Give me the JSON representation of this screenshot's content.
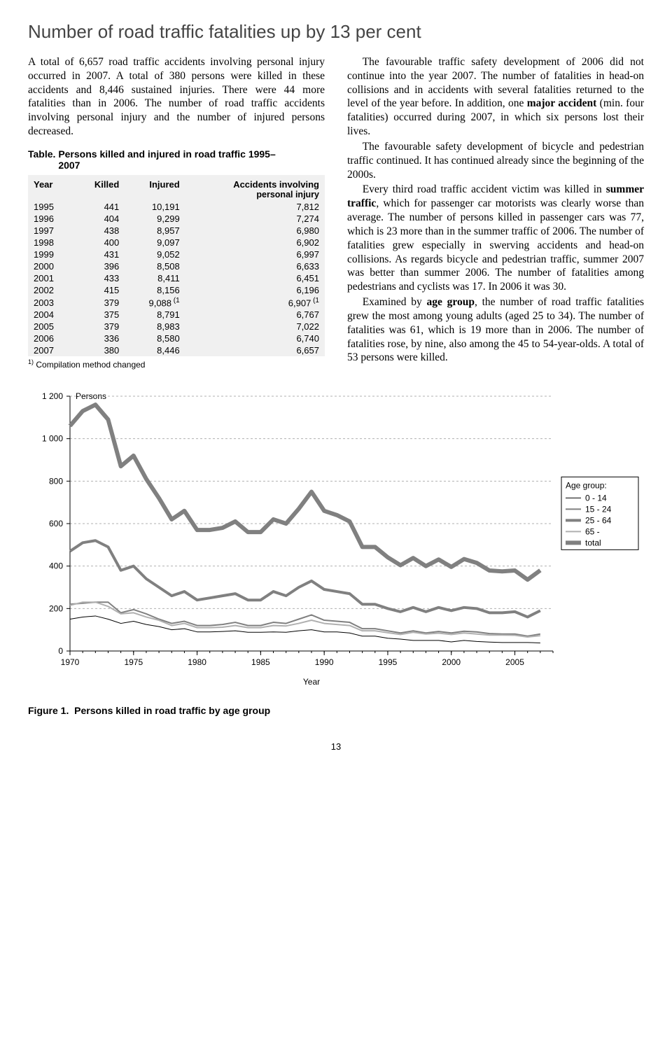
{
  "title": "Number of road traffic fatalities up by 13 per cent",
  "intro_para": "A total of 6,657 road traffic accidents involving personal injury occurred in 2007. A total of 380 persons were killed in these accidents and 8,446 sustained injuries. There were 44 more fatalities than in 2006. The number of road traffic accidents involving personal injury and the number of injured persons decreased.",
  "table": {
    "title_prefix": "Table.",
    "title_rest": "Persons killed and injured in road traffic 1995–2007",
    "cols": {
      "year": "Year",
      "killed": "Killed",
      "injured": "Injured",
      "accidents_l1": "Accidents involving",
      "accidents_l2": "personal injury"
    },
    "rows": [
      {
        "year": "1995",
        "killed": "441",
        "injured": "10,191",
        "acc": "7,812"
      },
      {
        "year": "1996",
        "killed": "404",
        "injured": "9,299",
        "acc": "7,274"
      },
      {
        "year": "1997",
        "killed": "438",
        "injured": "8,957",
        "acc": "6,980"
      },
      {
        "year": "1998",
        "killed": "400",
        "injured": "9,097",
        "acc": "6,902"
      },
      {
        "year": "1999",
        "killed": "431",
        "injured": "9,052",
        "acc": "6,997"
      },
      {
        "year": "2000",
        "killed": "396",
        "injured": "8,508",
        "acc": "6,633"
      },
      {
        "year": "2001",
        "killed": "433",
        "injured": "8,411",
        "acc": "6,451"
      },
      {
        "year": "2002",
        "killed": "415",
        "injured": "8,156",
        "acc": "6,196"
      },
      {
        "year": "2003",
        "killed": "379",
        "injured": "9,088",
        "injured_note": "(1",
        "acc": "6,907",
        "acc_note": "(1"
      },
      {
        "year": "2004",
        "killed": "375",
        "injured": "8,791",
        "acc": "6,767"
      },
      {
        "year": "2005",
        "killed": "379",
        "injured": "8,983",
        "acc": "7,022"
      },
      {
        "year": "2006",
        "killed": "336",
        "injured": "8,580",
        "acc": "6,740"
      },
      {
        "year": "2007",
        "killed": "380",
        "injured": "8,446",
        "acc": "6,657"
      }
    ],
    "footnote_sup": "1)",
    "footnote_text": "Compilation method changed"
  },
  "right_col": {
    "p1_a": "The favourable traffic safety development of 2006 did not continue into the year 2007. The number of fatalities in head-on collisions and in accidents with several fatalities returned to the level of the year before. In addition, one ",
    "p1_bold": "major accident",
    "p1_b": " (min. four fatalities) occurred during 2007, in which six persons lost their lives.",
    "p2": "The favourable safety development of bicycle and pedestrian traffic continued. It has continued already since the beginning of the 2000s.",
    "p3_a": "Every third road traffic accident victim was killed in ",
    "p3_bold": "summer traffic",
    "p3_b": ", which for passenger car motorists was clearly worse than average. The number of persons killed in passenger cars was 77, which is 23 more than in the summer traffic of 2006. The number of fatalities grew especially in swerving accidents and head-on collisions. As regards bicycle and pedestrian traffic, summer 2007 was better than summer 2006. The number of fatalities among pedestrians and cyclists was 17. In 2006 it was 30.",
    "p4_a": "Examined by ",
    "p4_bold": "age group",
    "p4_b": ", the number of road traffic fatalities grew the most among young adults (aged 25 to 34). The number of fatalities was 61, which is 19 more than in 2006. The number of fatalities rose, by nine, also among the 45 to 54-year-olds. A total of 53 persons were killed."
  },
  "chart": {
    "y_label": "Persons",
    "x_label": "Year",
    "y_ticks": [
      0,
      200,
      400,
      600,
      800,
      1000,
      1200
    ],
    "y_tick_labels": [
      "0",
      "200",
      "400",
      "600",
      "800",
      "1 000",
      "1 200"
    ],
    "x_ticks": [
      1970,
      1975,
      1980,
      1985,
      1990,
      1995,
      2000,
      2005
    ],
    "x_range": [
      1970,
      2008
    ],
    "y_range": [
      0,
      1200
    ],
    "legend_title": "Age group:",
    "legend": [
      {
        "label": "0 - 14",
        "color": "#000000",
        "weight": 1
      },
      {
        "label": "15 - 24",
        "color": "#808080",
        "weight": 2
      },
      {
        "label": "25 - 64",
        "color": "#808080",
        "weight": 4
      },
      {
        "label": "65 -",
        "color": "#b0b0b0",
        "weight": 2
      },
      {
        "label": "total",
        "color": "#808080",
        "weight": 6
      }
    ],
    "series": {
      "total": {
        "color": "#808080",
        "weight": 6,
        "points": [
          [
            1970,
            1060
          ],
          [
            1971,
            1130
          ],
          [
            1972,
            1160
          ],
          [
            1973,
            1090
          ],
          [
            1974,
            870
          ],
          [
            1975,
            920
          ],
          [
            1976,
            810
          ],
          [
            1977,
            720
          ],
          [
            1978,
            620
          ],
          [
            1979,
            660
          ],
          [
            1980,
            570
          ],
          [
            1981,
            570
          ],
          [
            1982,
            580
          ],
          [
            1983,
            610
          ],
          [
            1984,
            560
          ],
          [
            1985,
            560
          ],
          [
            1986,
            620
          ],
          [
            1987,
            600
          ],
          [
            1988,
            670
          ],
          [
            1989,
            750
          ],
          [
            1990,
            660
          ],
          [
            1991,
            640
          ],
          [
            1992,
            610
          ],
          [
            1993,
            490
          ],
          [
            1994,
            490
          ],
          [
            1995,
            441
          ],
          [
            1996,
            404
          ],
          [
            1997,
            438
          ],
          [
            1998,
            400
          ],
          [
            1999,
            431
          ],
          [
            2000,
            396
          ],
          [
            2001,
            433
          ],
          [
            2002,
            415
          ],
          [
            2003,
            379
          ],
          [
            2004,
            375
          ],
          [
            2005,
            379
          ],
          [
            2006,
            336
          ],
          [
            2007,
            380
          ]
        ]
      },
      "g25_64": {
        "color": "#808080",
        "weight": 4,
        "points": [
          [
            1970,
            470
          ],
          [
            1971,
            510
          ],
          [
            1972,
            520
          ],
          [
            1973,
            490
          ],
          [
            1974,
            380
          ],
          [
            1975,
            400
          ],
          [
            1976,
            340
          ],
          [
            1977,
            300
          ],
          [
            1978,
            260
          ],
          [
            1979,
            280
          ],
          [
            1980,
            240
          ],
          [
            1981,
            250
          ],
          [
            1982,
            260
          ],
          [
            1983,
            270
          ],
          [
            1984,
            240
          ],
          [
            1985,
            240
          ],
          [
            1986,
            280
          ],
          [
            1987,
            260
          ],
          [
            1988,
            300
          ],
          [
            1989,
            330
          ],
          [
            1990,
            290
          ],
          [
            1991,
            280
          ],
          [
            1992,
            270
          ],
          [
            1993,
            220
          ],
          [
            1994,
            220
          ],
          [
            1995,
            200
          ],
          [
            1996,
            185
          ],
          [
            1997,
            205
          ],
          [
            1998,
            185
          ],
          [
            1999,
            205
          ],
          [
            2000,
            190
          ],
          [
            2001,
            205
          ],
          [
            2002,
            200
          ],
          [
            2003,
            180
          ],
          [
            2004,
            180
          ],
          [
            2005,
            185
          ],
          [
            2006,
            160
          ],
          [
            2007,
            190
          ]
        ]
      },
      "g15_24": {
        "color": "#808080",
        "weight": 2,
        "points": [
          [
            1970,
            220
          ],
          [
            1971,
            225
          ],
          [
            1972,
            230
          ],
          [
            1973,
            230
          ],
          [
            1974,
            180
          ],
          [
            1975,
            195
          ],
          [
            1976,
            175
          ],
          [
            1977,
            150
          ],
          [
            1978,
            130
          ],
          [
            1979,
            140
          ],
          [
            1980,
            120
          ],
          [
            1981,
            120
          ],
          [
            1982,
            125
          ],
          [
            1983,
            135
          ],
          [
            1984,
            120
          ],
          [
            1985,
            120
          ],
          [
            1986,
            135
          ],
          [
            1987,
            130
          ],
          [
            1988,
            150
          ],
          [
            1989,
            170
          ],
          [
            1990,
            145
          ],
          [
            1991,
            140
          ],
          [
            1992,
            135
          ],
          [
            1993,
            105
          ],
          [
            1994,
            105
          ],
          [
            1995,
            95
          ],
          [
            1996,
            85
          ],
          [
            1997,
            95
          ],
          [
            1998,
            85
          ],
          [
            1999,
            92
          ],
          [
            2000,
            85
          ],
          [
            2001,
            93
          ],
          [
            2002,
            90
          ],
          [
            2003,
            82
          ],
          [
            2004,
            80
          ],
          [
            2005,
            80
          ],
          [
            2006,
            70
          ],
          [
            2007,
            80
          ]
        ]
      },
      "g65": {
        "color": "#b0b0b0",
        "weight": 2,
        "points": [
          [
            1970,
            215
          ],
          [
            1971,
            230
          ],
          [
            1972,
            230
          ],
          [
            1973,
            210
          ],
          [
            1974,
            175
          ],
          [
            1975,
            180
          ],
          [
            1976,
            160
          ],
          [
            1977,
            145
          ],
          [
            1978,
            120
          ],
          [
            1979,
            130
          ],
          [
            1980,
            110
          ],
          [
            1981,
            110
          ],
          [
            1982,
            112
          ],
          [
            1983,
            120
          ],
          [
            1984,
            110
          ],
          [
            1985,
            110
          ],
          [
            1986,
            120
          ],
          [
            1987,
            118
          ],
          [
            1988,
            130
          ],
          [
            1989,
            145
          ],
          [
            1990,
            130
          ],
          [
            1991,
            125
          ],
          [
            1992,
            120
          ],
          [
            1993,
            95
          ],
          [
            1994,
            95
          ],
          [
            1995,
            86
          ],
          [
            1996,
            78
          ],
          [
            1997,
            88
          ],
          [
            1998,
            80
          ],
          [
            1999,
            84
          ],
          [
            2000,
            78
          ],
          [
            2001,
            85
          ],
          [
            2002,
            80
          ],
          [
            2003,
            75
          ],
          [
            2004,
            75
          ],
          [
            2005,
            74
          ],
          [
            2006,
            66
          ],
          [
            2007,
            72
          ]
        ]
      },
      "g0_14": {
        "color": "#000000",
        "weight": 1,
        "points": [
          [
            1970,
            150
          ],
          [
            1971,
            160
          ],
          [
            1972,
            165
          ],
          [
            1973,
            150
          ],
          [
            1974,
            130
          ],
          [
            1975,
            140
          ],
          [
            1976,
            125
          ],
          [
            1977,
            115
          ],
          [
            1978,
            100
          ],
          [
            1979,
            105
          ],
          [
            1980,
            90
          ],
          [
            1981,
            90
          ],
          [
            1982,
            92
          ],
          [
            1983,
            95
          ],
          [
            1984,
            88
          ],
          [
            1985,
            88
          ],
          [
            1986,
            90
          ],
          [
            1987,
            88
          ],
          [
            1988,
            95
          ],
          [
            1989,
            100
          ],
          [
            1990,
            90
          ],
          [
            1991,
            90
          ],
          [
            1992,
            85
          ],
          [
            1993,
            70
          ],
          [
            1994,
            70
          ],
          [
            1995,
            60
          ],
          [
            1996,
            56
          ],
          [
            1997,
            50
          ],
          [
            1998,
            50
          ],
          [
            1999,
            50
          ],
          [
            2000,
            43
          ],
          [
            2001,
            50
          ],
          [
            2002,
            45
          ],
          [
            2003,
            42
          ],
          [
            2004,
            40
          ],
          [
            2005,
            40
          ],
          [
            2006,
            40
          ],
          [
            2007,
            38
          ]
        ]
      }
    },
    "bg": "#ffffff",
    "grid_color": "#b0b0b0",
    "axis_color": "#000000",
    "label_fontsize": 12
  },
  "figure_caption_prefix": "Figure 1.",
  "figure_caption_rest": "Persons killed in road traffic by age group",
  "page_number": "13"
}
